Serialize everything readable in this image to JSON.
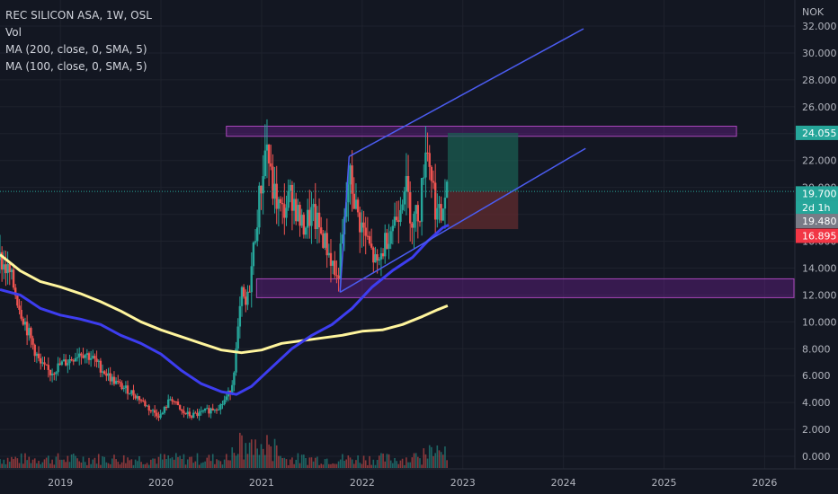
{
  "header": {
    "symbol_line": "REC SILICON ASA, 1W, OSL",
    "indicators": [
      "Vol",
      "MA (200, close, 0, SMA, 5)",
      "MA (100, close, 0, SMA, 5)"
    ]
  },
  "currency": "NOK",
  "colors": {
    "background": "#131722",
    "grid": "#1e222d",
    "up": "#26a69a",
    "down": "#ef5350",
    "ma200": "#fff59d",
    "ma100": "#3d3df0",
    "channel": "#4b5cf0",
    "zone_fill": "#7b1fa2",
    "zone_stroke": "#ab47bc",
    "target_fill": "#1b5e52",
    "stop_fill": "#5d2b2e"
  },
  "chart_data": {
    "type": "candlestick",
    "y_axis": {
      "min": 0,
      "max": 32,
      "ticks": [
        "0.000",
        "2.000",
        "4.000",
        "6.000",
        "8.000",
        "10.000",
        "12.000",
        "14.000",
        "16.000",
        "18.000",
        "20.000",
        "22.000",
        "24.000",
        "26.000",
        "28.000",
        "30.000",
        "32.000"
      ]
    },
    "x_axis": {
      "start": 2018.4,
      "end": 2026.3,
      "ticks": [
        {
          "label": "2019",
          "value": 2019.0
        },
        {
          "label": "2020",
          "value": 2020.0
        },
        {
          "label": "2021",
          "value": 2021.0
        },
        {
          "label": "2022",
          "value": 2022.0
        },
        {
          "label": "2023",
          "value": 2023.0
        },
        {
          "label": "2024",
          "value": 2024.0
        },
        {
          "label": "2025",
          "value": 2025.0
        },
        {
          "label": "2026",
          "value": 2026.0
        }
      ]
    },
    "price_path": [
      {
        "x": 2018.4,
        "y": 14.6
      },
      {
        "x": 2018.5,
        "y": 13.5
      },
      {
        "x": 2018.6,
        "y": 11.0
      },
      {
        "x": 2018.7,
        "y": 8.8
      },
      {
        "x": 2018.8,
        "y": 6.8
      },
      {
        "x": 2018.9,
        "y": 6.2
      },
      {
        "x": 2019.0,
        "y": 6.8
      },
      {
        "x": 2019.1,
        "y": 7.2
      },
      {
        "x": 2019.2,
        "y": 7.8
      },
      {
        "x": 2019.3,
        "y": 7.4
      },
      {
        "x": 2019.4,
        "y": 6.6
      },
      {
        "x": 2019.5,
        "y": 5.8
      },
      {
        "x": 2019.6,
        "y": 5.2
      },
      {
        "x": 2019.7,
        "y": 4.8
      },
      {
        "x": 2019.8,
        "y": 4.2
      },
      {
        "x": 2019.9,
        "y": 3.4
      },
      {
        "x": 2020.0,
        "y": 3.0
      },
      {
        "x": 2020.1,
        "y": 4.4
      },
      {
        "x": 2020.2,
        "y": 3.3
      },
      {
        "x": 2020.3,
        "y": 3.0
      },
      {
        "x": 2020.4,
        "y": 3.2
      },
      {
        "x": 2020.5,
        "y": 3.5
      },
      {
        "x": 2020.6,
        "y": 3.8
      },
      {
        "x": 2020.7,
        "y": 5.0
      },
      {
        "x": 2020.75,
        "y": 8.0
      },
      {
        "x": 2020.8,
        "y": 12.0
      },
      {
        "x": 2020.85,
        "y": 11.0
      },
      {
        "x": 2020.9,
        "y": 14.0
      },
      {
        "x": 2020.95,
        "y": 17.5
      },
      {
        "x": 2021.0,
        "y": 20.5
      },
      {
        "x": 2021.05,
        "y": 23.5
      },
      {
        "x": 2021.1,
        "y": 20.0
      },
      {
        "x": 2021.2,
        "y": 18.0
      },
      {
        "x": 2021.3,
        "y": 19.5
      },
      {
        "x": 2021.4,
        "y": 17.0
      },
      {
        "x": 2021.5,
        "y": 18.0
      },
      {
        "x": 2021.6,
        "y": 16.5
      },
      {
        "x": 2021.7,
        "y": 14.5
      },
      {
        "x": 2021.75,
        "y": 13.0
      },
      {
        "x": 2021.82,
        "y": 17.0
      },
      {
        "x": 2021.87,
        "y": 21.0
      },
      {
        "x": 2021.95,
        "y": 18.0
      },
      {
        "x": 2022.05,
        "y": 16.0
      },
      {
        "x": 2022.15,
        "y": 14.0
      },
      {
        "x": 2022.25,
        "y": 16.5
      },
      {
        "x": 2022.35,
        "y": 18.0
      },
      {
        "x": 2022.42,
        "y": 20.5
      },
      {
        "x": 2022.5,
        "y": 17.5
      },
      {
        "x": 2022.58,
        "y": 18.5
      },
      {
        "x": 2022.63,
        "y": 23.5
      },
      {
        "x": 2022.68,
        "y": 21.5
      },
      {
        "x": 2022.73,
        "y": 18.5
      },
      {
        "x": 2022.78,
        "y": 17.5
      },
      {
        "x": 2022.83,
        "y": 19.7
      }
    ],
    "ma200": [
      {
        "x": 2018.4,
        "y": 15.0
      },
      {
        "x": 2018.6,
        "y": 13.8
      },
      {
        "x": 2018.8,
        "y": 13.0
      },
      {
        "x": 2019.0,
        "y": 12.6
      },
      {
        "x": 2019.2,
        "y": 12.1
      },
      {
        "x": 2019.4,
        "y": 11.5
      },
      {
        "x": 2019.6,
        "y": 10.8
      },
      {
        "x": 2019.8,
        "y": 10.0
      },
      {
        "x": 2020.0,
        "y": 9.4
      },
      {
        "x": 2020.2,
        "y": 8.9
      },
      {
        "x": 2020.4,
        "y": 8.4
      },
      {
        "x": 2020.6,
        "y": 7.9
      },
      {
        "x": 2020.8,
        "y": 7.7
      },
      {
        "x": 2021.0,
        "y": 7.9
      },
      {
        "x": 2021.2,
        "y": 8.4
      },
      {
        "x": 2021.4,
        "y": 8.6
      },
      {
        "x": 2021.6,
        "y": 8.8
      },
      {
        "x": 2021.8,
        "y": 9.0
      },
      {
        "x": 2022.0,
        "y": 9.3
      },
      {
        "x": 2022.2,
        "y": 9.4
      },
      {
        "x": 2022.4,
        "y": 9.8
      },
      {
        "x": 2022.6,
        "y": 10.4
      },
      {
        "x": 2022.75,
        "y": 10.9
      },
      {
        "x": 2022.85,
        "y": 11.2
      }
    ],
    "ma100": [
      {
        "x": 2018.4,
        "y": 12.4
      },
      {
        "x": 2018.6,
        "y": 12.0
      },
      {
        "x": 2018.8,
        "y": 11.0
      },
      {
        "x": 2019.0,
        "y": 10.5
      },
      {
        "x": 2019.2,
        "y": 10.2
      },
      {
        "x": 2019.4,
        "y": 9.8
      },
      {
        "x": 2019.6,
        "y": 9.0
      },
      {
        "x": 2019.8,
        "y": 8.4
      },
      {
        "x": 2020.0,
        "y": 7.6
      },
      {
        "x": 2020.2,
        "y": 6.4
      },
      {
        "x": 2020.4,
        "y": 5.4
      },
      {
        "x": 2020.6,
        "y": 4.8
      },
      {
        "x": 2020.75,
        "y": 4.6
      },
      {
        "x": 2020.9,
        "y": 5.2
      },
      {
        "x": 2021.1,
        "y": 6.6
      },
      {
        "x": 2021.3,
        "y": 8.0
      },
      {
        "x": 2021.5,
        "y": 9.0
      },
      {
        "x": 2021.7,
        "y": 9.8
      },
      {
        "x": 2021.9,
        "y": 11.0
      },
      {
        "x": 2022.1,
        "y": 12.6
      },
      {
        "x": 2022.3,
        "y": 13.8
      },
      {
        "x": 2022.5,
        "y": 14.8
      },
      {
        "x": 2022.65,
        "y": 16.0
      },
      {
        "x": 2022.8,
        "y": 17.0
      },
      {
        "x": 2022.86,
        "y": 17.2
      }
    ],
    "drawings": {
      "resistance_zone": {
        "x1": 2020.65,
        "x2": 2025.72,
        "y1": 23.8,
        "y2": 24.55
      },
      "support_zone": {
        "x1": 2020.95,
        "x2": 2026.3,
        "y1": 11.8,
        "y2": 13.2
      },
      "channel_upper": [
        {
          "x": 2021.87,
          "y": 22.3
        },
        {
          "x": 2021.87,
          "y": 22.3
        },
        {
          "x": 2024.2,
          "y": 31.8
        }
      ],
      "channel_upper_start": {
        "x": 2021.87,
        "y": 22.3
      },
      "channel_lower": {
        "x1": 2021.78,
        "y1": 12.2,
        "x2": 2024.22,
        "y2": 22.9
      },
      "channel_left_edge": {
        "x1": 2021.78,
        "y1": 12.2,
        "x2": 2021.87,
        "y2": 22.3
      },
      "position_box": {
        "x1": 2022.85,
        "x2": 2023.55,
        "entry": 19.7,
        "target": 24.055,
        "stop": 16.895
      }
    },
    "price_tags": [
      {
        "value": "24.055",
        "y": 24.055,
        "color": "#26a69a"
      },
      {
        "value": "19.700",
        "y": 19.55,
        "color": "#26a69a"
      },
      {
        "value": "2d 1h",
        "y": 18.5,
        "color": "#26a69a"
      },
      {
        "value": "19.480",
        "y": 17.5,
        "color": "#787b86"
      },
      {
        "value": "16.895",
        "y": 16.4,
        "color": "#f23645"
      }
    ]
  }
}
